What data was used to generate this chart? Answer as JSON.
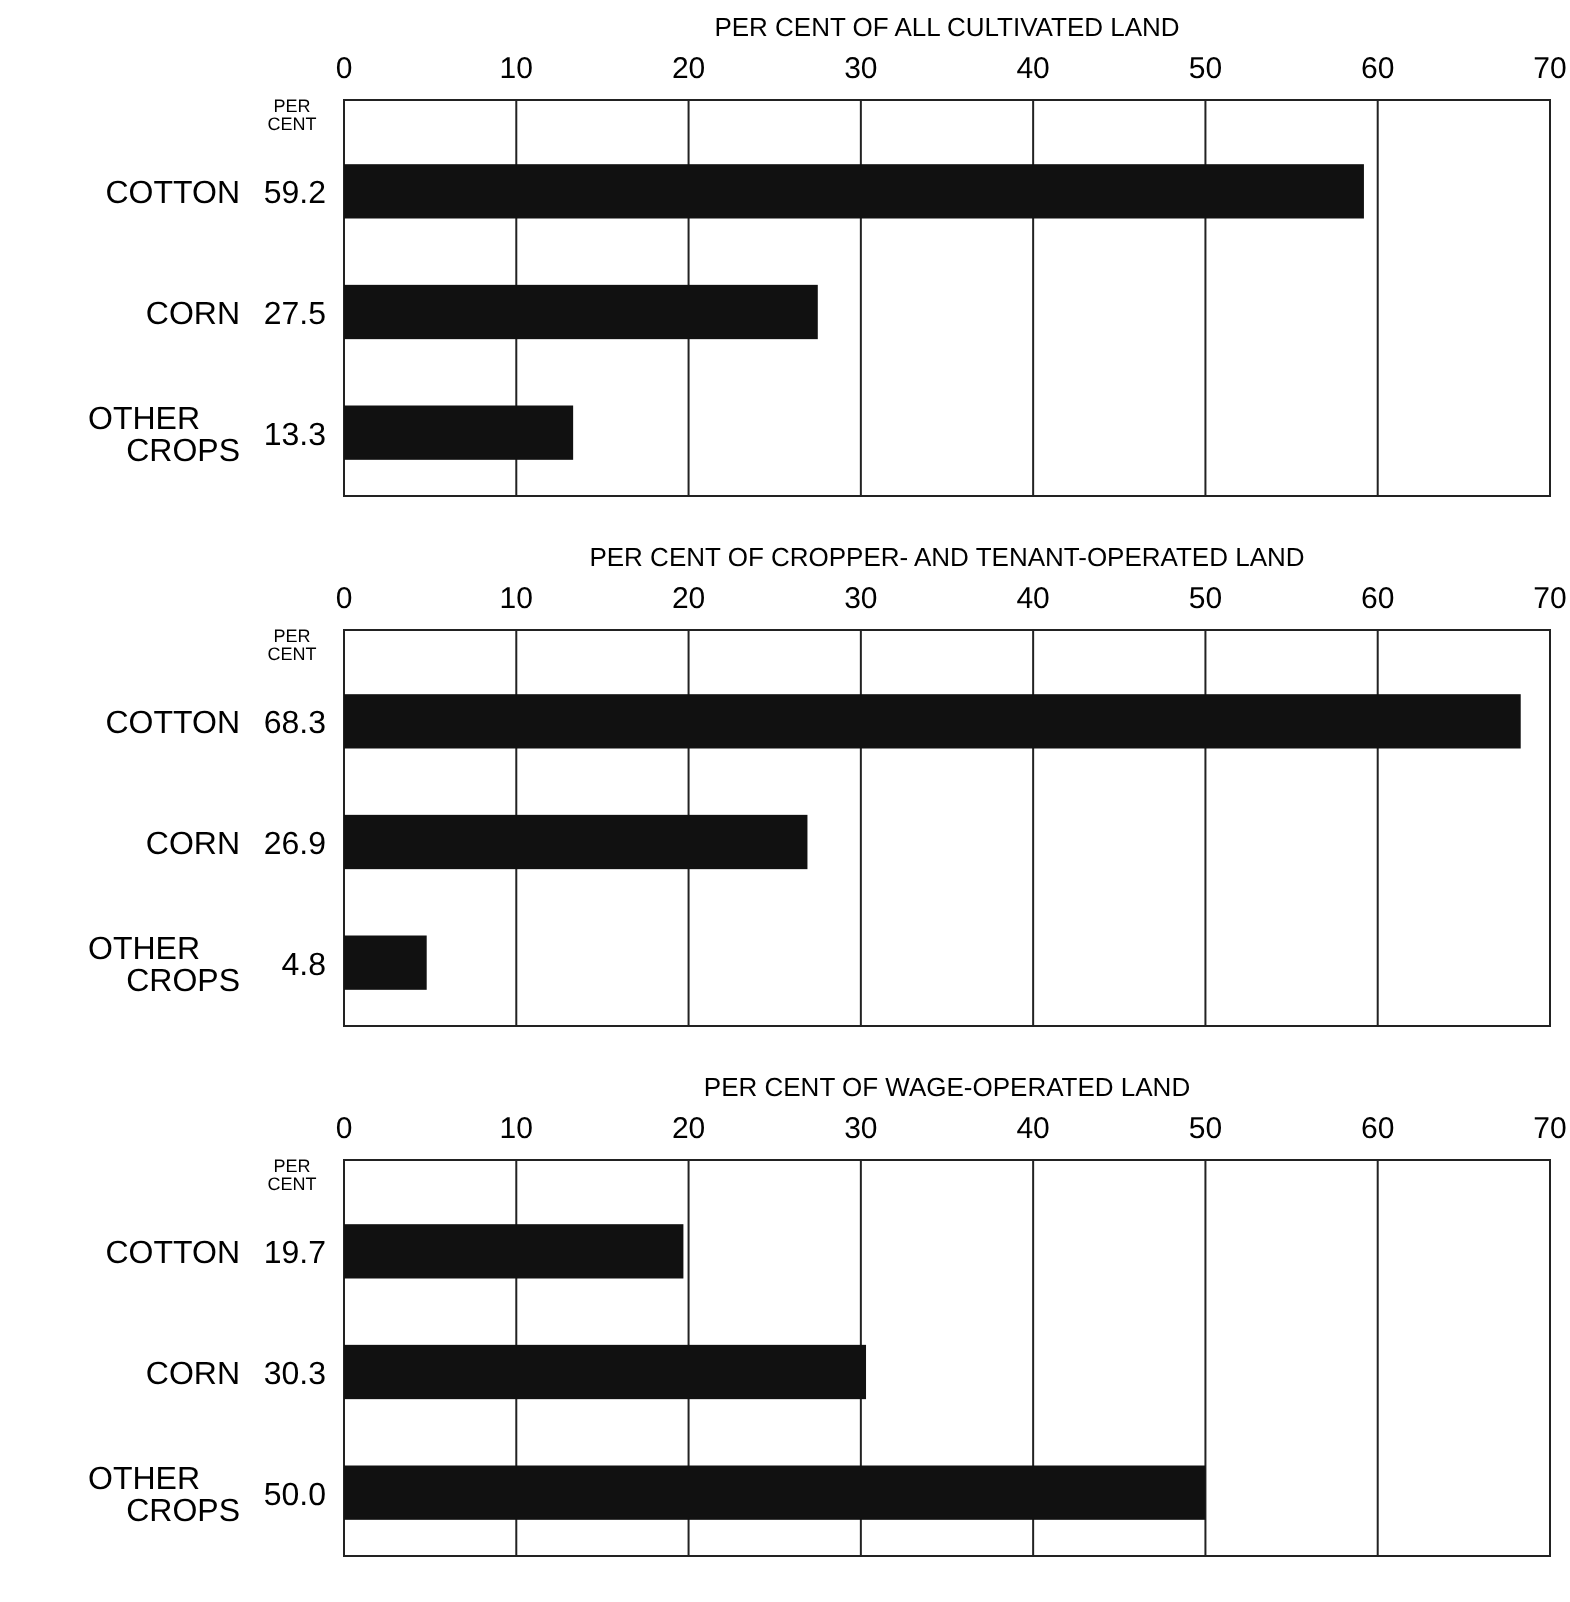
{
  "chart_data": [
    {
      "type": "bar",
      "orientation": "horizontal",
      "title": "PER CENT OF ALL CULTIVATED LAND",
      "categories": [
        "COTTON",
        "CORN",
        "OTHER CROPS"
      ],
      "values": [
        59.2,
        27.5,
        13.3
      ],
      "value_labels": [
        "59.2",
        "27.5",
        "13.3"
      ],
      "color": "#111111",
      "xlim": [
        0,
        70
      ],
      "xticks": [
        0,
        10,
        20,
        30,
        40,
        50,
        60,
        70
      ],
      "grid": "x",
      "annotations": [
        "PER CENT"
      ]
    },
    {
      "type": "bar",
      "orientation": "horizontal",
      "title": "PER CENT OF CROPPER- AND TENANT-OPERATED LAND",
      "categories": [
        "COTTON",
        "CORN",
        "OTHER CROPS"
      ],
      "values": [
        68.3,
        26.9,
        4.8
      ],
      "value_labels": [
        "68.3",
        "26.9",
        "4.8"
      ],
      "color": "#111111",
      "xlim": [
        0,
        70
      ],
      "xticks": [
        0,
        10,
        20,
        30,
        40,
        50,
        60,
        70
      ],
      "grid": "x",
      "annotations": [
        "PER CENT"
      ]
    },
    {
      "type": "bar",
      "orientation": "horizontal",
      "title": "PER CENT OF WAGE-OPERATED LAND",
      "categories": [
        "COTTON",
        "CORN",
        "OTHER CROPS"
      ],
      "values": [
        19.7,
        30.3,
        50
      ],
      "value_labels": [
        "19.7",
        "30.3",
        "50.0"
      ],
      "color": "#111111",
      "xlim": [
        0,
        70
      ],
      "xticks": [
        0,
        10,
        20,
        30,
        40,
        50,
        60,
        70
      ],
      "grid": "x",
      "annotations": [
        "PER CENT"
      ]
    }
  ]
}
